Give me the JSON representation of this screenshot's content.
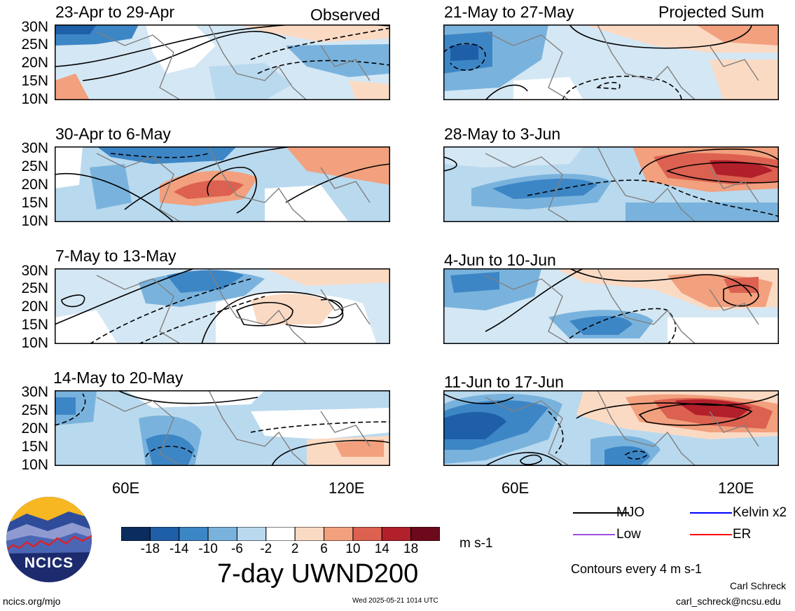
{
  "headers": {
    "left": "Observed",
    "right": "Projected Sum"
  },
  "panels_left": [
    {
      "title": "23-Apr to 29-Apr"
    },
    {
      "title": "30-Apr to 6-May"
    },
    {
      "title": "7-May to 13-May"
    },
    {
      "title": "14-May to 20-May"
    }
  ],
  "panels_right": [
    {
      "title": "21-May to 27-May"
    },
    {
      "title": "28-May to 3-Jun"
    },
    {
      "title": "4-Jun to 10-Jun"
    },
    {
      "title": "11-Jun to 17-Jun"
    }
  ],
  "lat_labels": [
    "30N",
    "25N",
    "20N",
    "15N",
    "10N"
  ],
  "lon_labels": [
    "60E",
    "120E"
  ],
  "colorbar": {
    "ticks": [
      "-18",
      "-14",
      "-10",
      "-6",
      "-2",
      "2",
      "6",
      "10",
      "14",
      "18"
    ],
    "colors": [
      "#0b2c5e",
      "#1f5fa8",
      "#3d86c6",
      "#79b3dd",
      "#b9d9ee",
      "#ffffff",
      "#fbdac4",
      "#f2a07e",
      "#dc6150",
      "#b2202b",
      "#6c0a1c"
    ],
    "units": "m s-1",
    "title": "7-day UWND200"
  },
  "legend": {
    "items": [
      {
        "label": "MJO",
        "color": "#000000"
      },
      {
        "label": "Kelvin x2",
        "color": "#0000ff"
      },
      {
        "label": "Low",
        "color": "#9b4ee0"
      },
      {
        "label": "ER",
        "color": "#ff0000"
      }
    ],
    "note": "Contours every 4 m s-1"
  },
  "logo": {
    "text": "NCICS"
  },
  "footer": {
    "url": "ncics.org/mjo",
    "timestamp": "Wed 2025-05-21 1014 UTC",
    "author": "Carl Schreck",
    "email": "carl_schreck@ncsu.edu"
  }
}
